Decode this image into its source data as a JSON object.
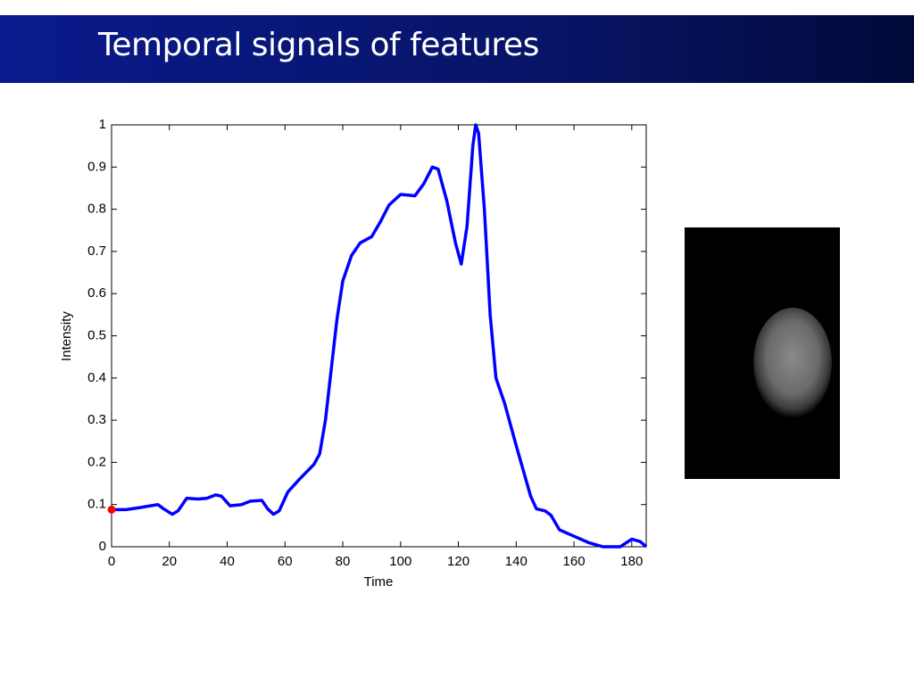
{
  "header": {
    "title": "Temporal signals of features"
  },
  "chart_data": {
    "type": "line",
    "xlabel": "Time",
    "ylabel": "Intensity",
    "x": [
      0,
      5,
      10,
      16,
      18,
      21,
      23,
      26,
      30,
      33,
      36,
      38,
      41,
      45,
      48,
      52,
      54,
      56,
      58,
      61,
      65,
      70,
      72,
      74,
      76,
      78,
      80,
      83,
      86,
      90,
      93,
      96,
      100,
      105,
      108,
      111,
      113,
      116,
      119,
      121,
      123,
      125,
      126,
      127,
      129,
      131,
      133,
      136,
      140,
      145,
      147,
      150,
      152,
      155,
      160,
      165,
      170,
      176,
      180,
      183,
      185
    ],
    "series": [
      {
        "color": "#0000ff",
        "values": [
          0.088,
          0.088,
          0.093,
          0.1,
          0.09,
          0.077,
          0.085,
          0.115,
          0.113,
          0.115,
          0.123,
          0.12,
          0.097,
          0.1,
          0.108,
          0.11,
          0.09,
          0.077,
          0.085,
          0.13,
          0.16,
          0.195,
          0.22,
          0.3,
          0.42,
          0.54,
          0.63,
          0.69,
          0.72,
          0.735,
          0.77,
          0.81,
          0.835,
          0.832,
          0.86,
          0.9,
          0.895,
          0.82,
          0.72,
          0.67,
          0.76,
          0.95,
          1.0,
          0.98,
          0.8,
          0.55,
          0.4,
          0.34,
          0.24,
          0.12,
          0.09,
          0.085,
          0.075,
          0.04,
          0.025,
          0.01,
          0,
          0,
          0.018,
          0.012,
          0
        ]
      }
    ],
    "highlight": {
      "x": 0,
      "y": 0.088,
      "color": "#ff0000"
    },
    "xlim": [
      0,
      185
    ],
    "ylim": [
      0,
      1
    ],
    "xticks": [
      0,
      20,
      40,
      60,
      80,
      100,
      120,
      140,
      160,
      180
    ],
    "yticks": [
      0,
      0.1,
      0.2,
      0.3,
      0.4,
      0.5,
      0.6,
      0.7,
      0.8,
      0.9,
      1
    ]
  }
}
